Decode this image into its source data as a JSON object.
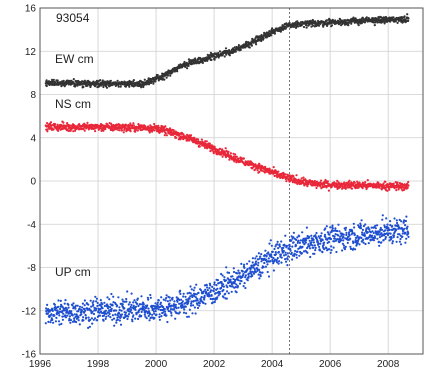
{
  "chart_data": {
    "type": "scatter",
    "station_label": "93054",
    "x_axis": {
      "min": 1996,
      "max": 2009.2,
      "ticks": [
        1996,
        1998,
        2000,
        2002,
        2004,
        2006,
        2008
      ],
      "tick_labels": [
        "1996",
        "1998",
        "2000",
        "2002",
        "2004",
        "2006",
        "2008"
      ]
    },
    "y_axis": {
      "min": -16,
      "max": 16,
      "ticks": [
        16,
        12,
        8,
        4,
        0,
        -4,
        -8,
        -12,
        -16
      ],
      "tick_labels": [
        "16",
        "12",
        "8",
        "4",
        "0",
        "-4",
        "-8",
        "-12",
        "-16"
      ]
    },
    "grid": true,
    "reference_line_x": 2004.6,
    "series": [
      {
        "name": "EW cm",
        "color": "#333333",
        "profile": [
          [
            1996.2,
            9.1
          ],
          [
            1998.0,
            9.0
          ],
          [
            1999.5,
            9.0
          ],
          [
            2000.2,
            9.6
          ],
          [
            2001.0,
            10.8
          ],
          [
            2002.0,
            11.5
          ],
          [
            2003.0,
            12.4
          ],
          [
            2004.0,
            13.8
          ],
          [
            2004.6,
            14.4
          ],
          [
            2005.5,
            14.6
          ],
          [
            2007.0,
            14.8
          ],
          [
            2008.7,
            15.0
          ]
        ],
        "noise_cm": 0.25
      },
      {
        "name": "NS cm",
        "color": "#e8283a",
        "profile": [
          [
            1996.2,
            5.0
          ],
          [
            1998.0,
            5.0
          ],
          [
            2000.0,
            4.9
          ],
          [
            2001.0,
            4.1
          ],
          [
            2002.0,
            3.0
          ],
          [
            2003.0,
            1.8
          ],
          [
            2004.0,
            0.8
          ],
          [
            2004.6,
            0.2
          ],
          [
            2005.5,
            -0.3
          ],
          [
            2007.0,
            -0.4
          ],
          [
            2008.7,
            -0.5
          ]
        ],
        "noise_cm": 0.3
      },
      {
        "name": "UP cm",
        "color": "#1f4fd0",
        "profile": [
          [
            1996.2,
            -12.2
          ],
          [
            1998.0,
            -12.0
          ],
          [
            2000.0,
            -11.8
          ],
          [
            2001.0,
            -11.3
          ],
          [
            2002.0,
            -10.2
          ],
          [
            2003.0,
            -8.8
          ],
          [
            2004.0,
            -7.0
          ],
          [
            2004.6,
            -6.2
          ],
          [
            2005.5,
            -5.6
          ],
          [
            2007.0,
            -5.0
          ],
          [
            2008.7,
            -4.5
          ]
        ],
        "noise_cm": 1.0
      }
    ]
  }
}
